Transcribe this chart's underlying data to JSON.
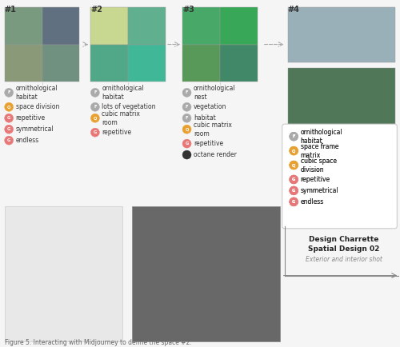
{
  "background_color": "#f5f5f5",
  "title": "Figure 5. Interacting with Midjourney to define the space #2.",
  "section_labels": [
    "#1",
    "#2",
    "#3",
    "#4"
  ],
  "tag_groups": [
    {
      "label": "#1",
      "tags": [
        {
          "circle_color": "#aaaaaa",
          "letter": "F",
          "text": "ornithological\nhabitat"
        },
        {
          "circle_color": "#e8a030",
          "letter": "Q",
          "text": "space division"
        },
        {
          "circle_color": "#e87878",
          "letter": "G",
          "text": "repetitive"
        },
        {
          "circle_color": "#e87878",
          "letter": "G",
          "text": "symmetrical"
        },
        {
          "circle_color": "#e87878",
          "letter": "G",
          "text": "endless"
        }
      ]
    },
    {
      "label": "#2",
      "tags": [
        {
          "circle_color": "#aaaaaa",
          "letter": "F",
          "text": "ornithological\nhabitat"
        },
        {
          "circle_color": "#aaaaaa",
          "letter": "F",
          "text": "lots of vegetation"
        },
        {
          "circle_color": "#e8a030",
          "letter": "Q",
          "text": "cubic matrix\nroom"
        },
        {
          "circle_color": "#e87878",
          "letter": "G",
          "text": "repetitive"
        }
      ]
    },
    {
      "label": "#3",
      "tags": [
        {
          "circle_color": "#aaaaaa",
          "letter": "F",
          "text": "ornithological\nnest"
        },
        {
          "circle_color": "#aaaaaa",
          "letter": "F",
          "text": "vegetation"
        },
        {
          "circle_color": "#aaaaaa",
          "letter": "F",
          "text": "habitat"
        },
        {
          "circle_color": "#e8a030",
          "letter": "Q",
          "text": "cubic matrix\nroom"
        },
        {
          "circle_color": "#e87878",
          "letter": "G",
          "text": "repetitive"
        },
        {
          "circle_color": "#333333",
          "letter": "",
          "text": "octane render"
        }
      ]
    },
    {
      "label": "#4",
      "tags": [
        {
          "circle_color": "#aaaaaa",
          "letter": "F",
          "text": "ornithological\nhabitat"
        },
        {
          "circle_color": "#e8a030",
          "letter": "Q",
          "text": "space frame\nmatrix"
        },
        {
          "circle_color": "#e8a030",
          "letter": "Q",
          "text": "cubic space\ndivision"
        },
        {
          "circle_color": "#e87878",
          "letter": "G",
          "text": "repetitive"
        },
        {
          "circle_color": "#e87878",
          "letter": "G",
          "text": "symmetrical"
        },
        {
          "circle_color": "#e87878",
          "letter": "G",
          "text": "endless"
        }
      ]
    }
  ]
}
